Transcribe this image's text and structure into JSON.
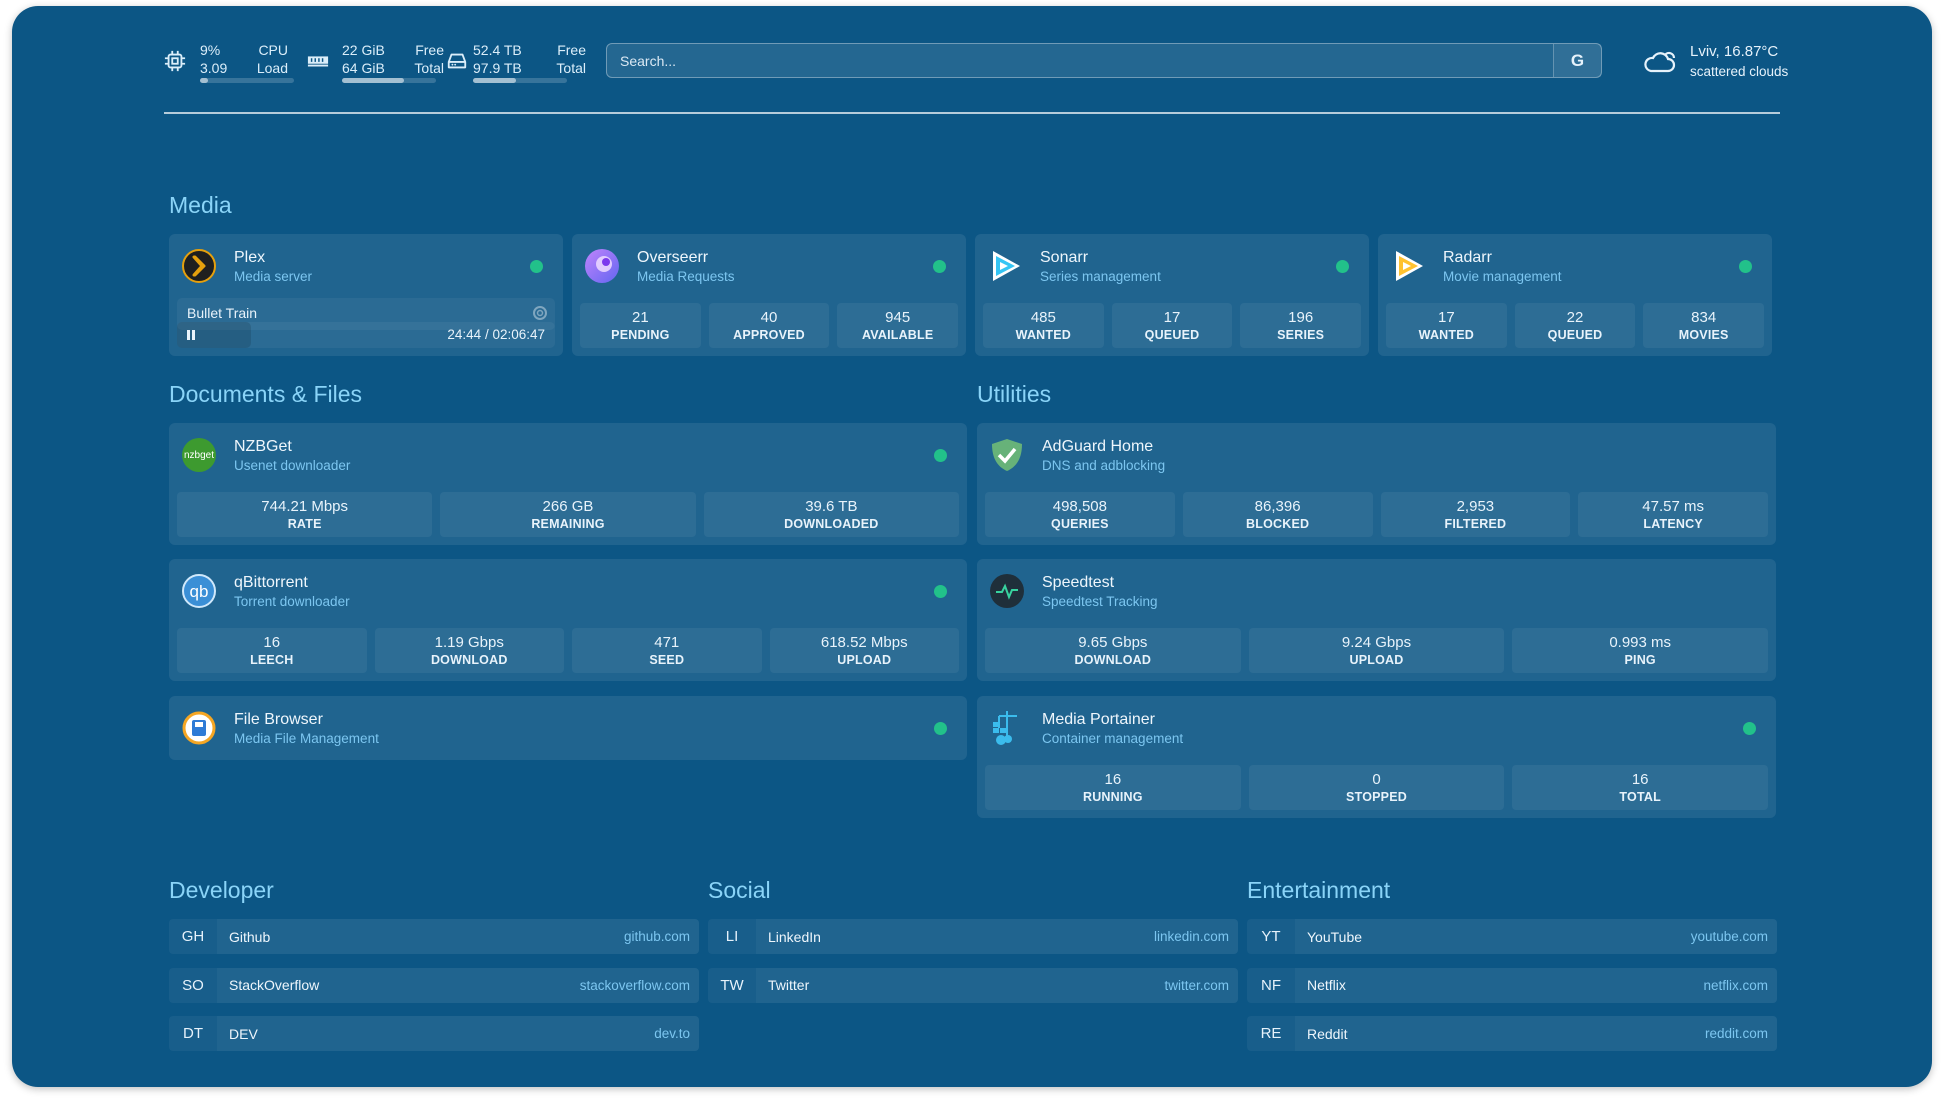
{
  "header": {
    "cpu": {
      "icon": "cpu-icon",
      "value1": "9%",
      "value2": "3.09",
      "label1": "CPU",
      "label2": "Load",
      "usage_percent": 9
    },
    "memory": {
      "icon": "memory-icon",
      "value1": "22 GiB",
      "value2": "64 GiB",
      "label1": "Free",
      "label2": "Total",
      "usage_percent": 66
    },
    "disk": {
      "icon": "disk-icon",
      "value1": "52.4 TB",
      "value2": "97.9 TB",
      "label1": "Free",
      "label2": "Total",
      "usage_percent": 46
    },
    "search": {
      "placeholder": "Search...",
      "button_label": "G"
    },
    "weather": {
      "icon": "cloud-icon",
      "location_temp": "Lviv, 16.87°C",
      "condition": "scattered clouds"
    }
  },
  "colors": {
    "background": "#0c5685",
    "accent": "#8ad4f8",
    "status_online": "#22c18a"
  },
  "groups": {
    "media": {
      "title": "Media",
      "services": [
        {
          "name": "Plex",
          "desc": "Media server",
          "icon": "plex-icon",
          "status": "online",
          "now_playing": {
            "title": "Bullet Train",
            "time": "24:44 / 02:06:47",
            "state": "playing",
            "progress_percent": 19.5
          }
        },
        {
          "name": "Overseerr",
          "desc": "Media Requests",
          "icon": "overseerr-icon",
          "status": "online",
          "stats": [
            {
              "value": "21",
              "label": "PENDING"
            },
            {
              "value": "40",
              "label": "APPROVED"
            },
            {
              "value": "945",
              "label": "AVAILABLE"
            }
          ]
        },
        {
          "name": "Sonarr",
          "desc": "Series management",
          "icon": "sonarr-icon",
          "status": "online",
          "stats": [
            {
              "value": "485",
              "label": "WANTED"
            },
            {
              "value": "17",
              "label": "QUEUED"
            },
            {
              "value": "196",
              "label": "SERIES"
            }
          ]
        },
        {
          "name": "Radarr",
          "desc": "Movie management",
          "icon": "radarr-icon",
          "status": "online",
          "stats": [
            {
              "value": "17",
              "label": "WANTED"
            },
            {
              "value": "22",
              "label": "QUEUED"
            },
            {
              "value": "834",
              "label": "MOVIES"
            }
          ]
        }
      ]
    },
    "documents": {
      "title": "Documents & Files",
      "services": [
        {
          "name": "NZBGet",
          "desc": "Usenet downloader",
          "icon": "nzbget-icon",
          "status": "online",
          "stats": [
            {
              "value": "744.21 Mbps",
              "label": "RATE"
            },
            {
              "value": "266 GB",
              "label": "REMAINING"
            },
            {
              "value": "39.6 TB",
              "label": "DOWNLOADED"
            }
          ]
        },
        {
          "name": "qBittorrent",
          "desc": "Torrent downloader",
          "icon": "qbittorrent-icon",
          "status": "online",
          "stats": [
            {
              "value": "16",
              "label": "LEECH"
            },
            {
              "value": "1.19 Gbps",
              "label": "DOWNLOAD"
            },
            {
              "value": "471",
              "label": "SEED"
            },
            {
              "value": "618.52 Mbps",
              "label": "UPLOAD"
            }
          ]
        },
        {
          "name": "File Browser",
          "desc": "Media File Management",
          "icon": "file-browser-icon",
          "status": "online"
        }
      ]
    },
    "utilities": {
      "title": "Utilities",
      "services": [
        {
          "name": "AdGuard Home",
          "desc": "DNS and adblocking",
          "icon": "adguard-shield-icon",
          "stats": [
            {
              "value": "498,508",
              "label": "QUERIES"
            },
            {
              "value": "86,396",
              "label": "BLOCKED"
            },
            {
              "value": "2,953",
              "label": "FILTERED"
            },
            {
              "value": "47.57 ms",
              "label": "LATENCY"
            }
          ]
        },
        {
          "name": "Speedtest",
          "desc": "Speedtest Tracking",
          "icon": "speedtest-icon",
          "stats": [
            {
              "value": "9.65 Gbps",
              "label": "DOWNLOAD"
            },
            {
              "value": "9.24 Gbps",
              "label": "UPLOAD"
            },
            {
              "value": "0.993 ms",
              "label": "PING"
            }
          ]
        },
        {
          "name": "Media Portainer",
          "desc": "Container management",
          "icon": "portainer-icon",
          "status": "online",
          "stats": [
            {
              "value": "16",
              "label": "RUNNING"
            },
            {
              "value": "0",
              "label": "STOPPED"
            },
            {
              "value": "16",
              "label": "TOTAL"
            }
          ]
        }
      ]
    }
  },
  "bookmarks": [
    {
      "title": "Developer",
      "items": [
        {
          "abbr": "GH",
          "name": "Github",
          "url": "github.com"
        },
        {
          "abbr": "SO",
          "name": "StackOverflow",
          "url": "stackoverflow.com"
        },
        {
          "abbr": "DT",
          "name": "DEV",
          "url": "dev.to"
        }
      ]
    },
    {
      "title": "Social",
      "items": [
        {
          "abbr": "LI",
          "name": "LinkedIn",
          "url": "linkedin.com"
        },
        {
          "abbr": "TW",
          "name": "Twitter",
          "url": "twitter.com"
        }
      ]
    },
    {
      "title": "Entertainment",
      "items": [
        {
          "abbr": "YT",
          "name": "YouTube",
          "url": "youtube.com"
        },
        {
          "abbr": "NF",
          "name": "Netflix",
          "url": "netflix.com"
        },
        {
          "abbr": "RE",
          "name": "Reddit",
          "url": "reddit.com"
        }
      ]
    }
  ]
}
